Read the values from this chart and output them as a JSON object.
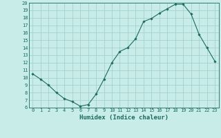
{
  "xlabel": "Humidex (Indice chaleur)",
  "ylabel": "",
  "x": [
    0,
    1,
    2,
    3,
    4,
    5,
    6,
    7,
    8,
    9,
    10,
    11,
    12,
    13,
    14,
    15,
    16,
    17,
    18,
    19,
    20,
    21,
    22,
    23
  ],
  "y": [
    10.5,
    9.8,
    9.0,
    8.0,
    7.2,
    6.8,
    6.2,
    6.4,
    7.8,
    9.8,
    12.0,
    13.5,
    14.0,
    15.2,
    17.5,
    17.9,
    18.6,
    19.2,
    19.8,
    19.8,
    18.5,
    15.8,
    14.0,
    12.2
  ],
  "line_color": "#1a6b5a",
  "marker": "D",
  "marker_size": 1.8,
  "background_color": "#c8ece8",
  "grid_color": "#a0ccc8",
  "ylim": [
    6,
    20
  ],
  "xlim": [
    -0.5,
    23.5
  ],
  "yticks": [
    6,
    7,
    8,
    9,
    10,
    11,
    12,
    13,
    14,
    15,
    16,
    17,
    18,
    19,
    20
  ],
  "xticks": [
    0,
    1,
    2,
    3,
    4,
    5,
    6,
    7,
    8,
    9,
    10,
    11,
    12,
    13,
    14,
    15,
    16,
    17,
    18,
    19,
    20,
    21,
    22,
    23
  ],
  "tick_fontsize": 5.0,
  "label_fontsize": 6.5,
  "axis_color": "#1a6b5a"
}
